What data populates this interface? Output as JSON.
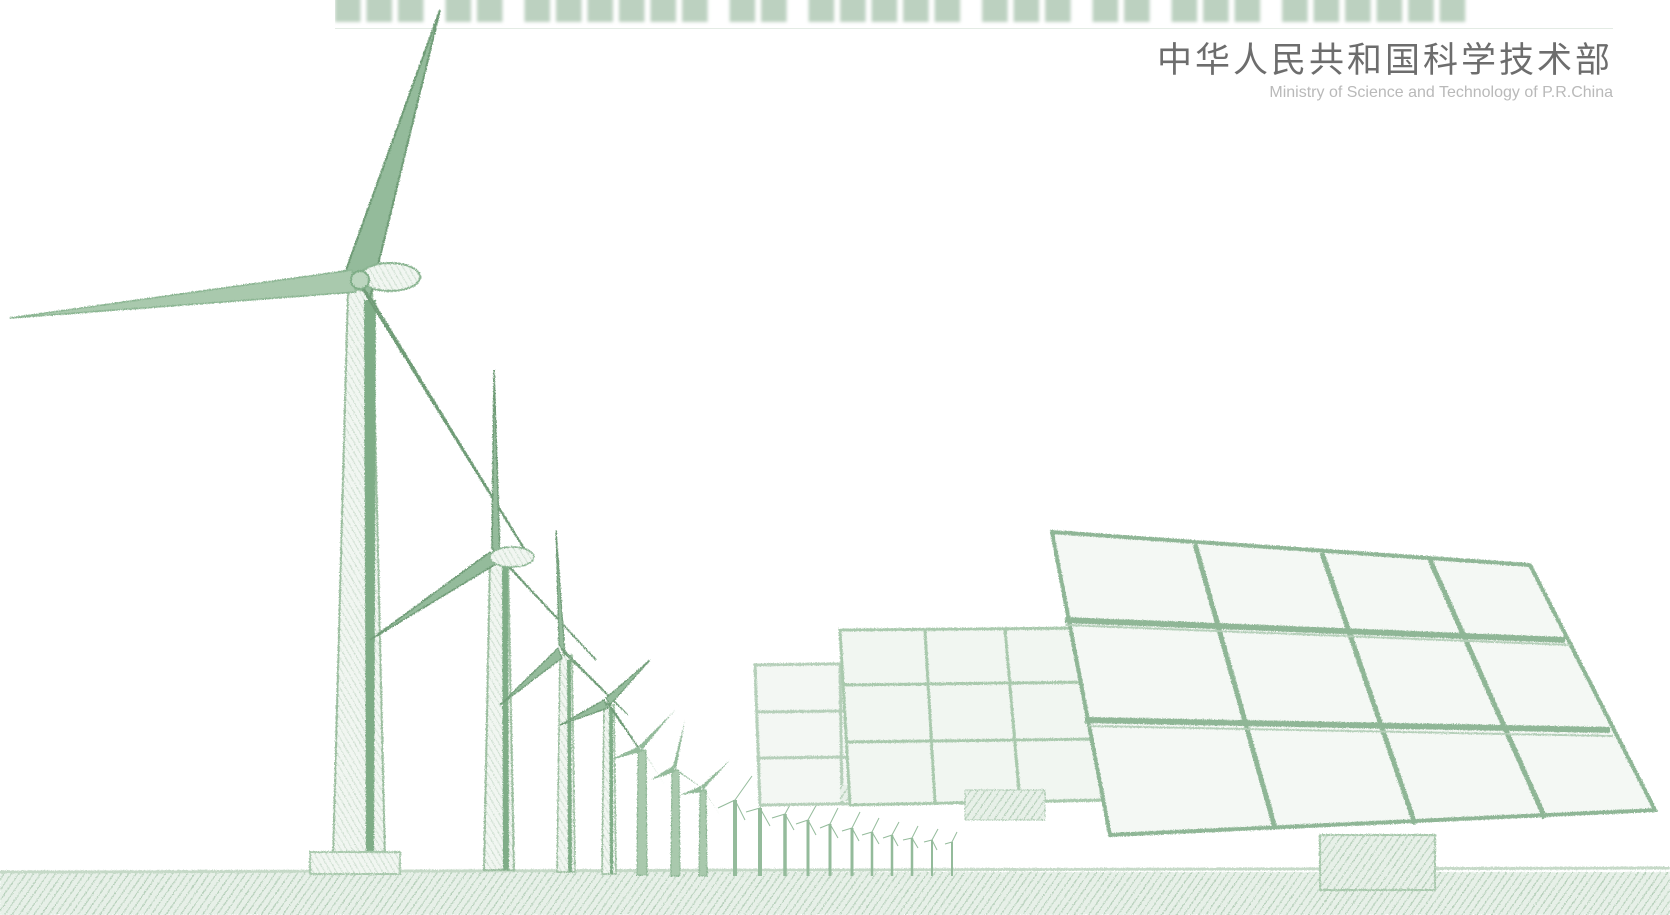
{
  "header": {
    "obscured_title": "███ ██ ██████ ██ █████ ███ ██ ███ ██████",
    "org_name_cn": "中华人民共和国科学技术部",
    "org_name_en": "Ministry of Science and Technology of P.R.China"
  },
  "palette": {
    "sketch_green": "#8fb696",
    "sketch_green_dark": "#6f9c77",
    "sketch_green_light": "#cfe0d1",
    "ground": "#dbe7dc"
  },
  "illustration": {
    "subjects": [
      "wind-turbines",
      "solar-panels"
    ]
  }
}
